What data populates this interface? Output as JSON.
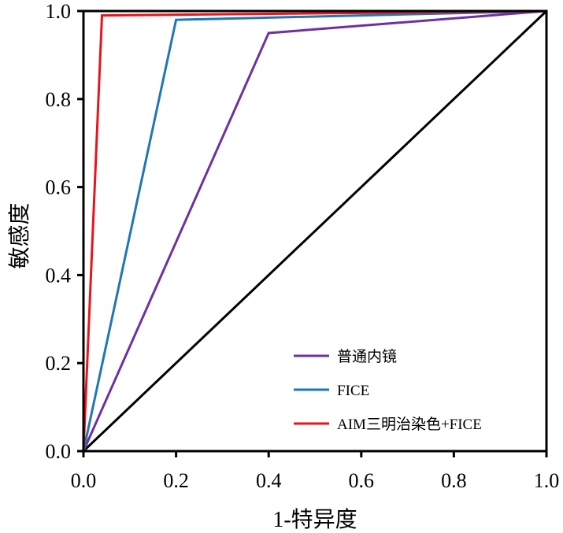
{
  "chart_data": {
    "type": "line",
    "xlabel": "1-特异度",
    "ylabel": "敏感度",
    "xlim": [
      0,
      1
    ],
    "ylim": [
      0,
      1
    ],
    "xticks": [
      "0.0",
      "0.2",
      "0.4",
      "0.6",
      "0.8",
      "1.0"
    ],
    "yticks": [
      "0.0",
      "0.2",
      "0.4",
      "0.6",
      "0.8",
      "1.0"
    ],
    "grid": false,
    "legend_position": "bottom-right",
    "reference_line": {
      "x": [
        0,
        1
      ],
      "y": [
        0,
        1
      ],
      "color": "#000000"
    },
    "series": [
      {
        "name": "普通内镜",
        "color": "#7030a0",
        "x": [
          0,
          0.4,
          1.0
        ],
        "y": [
          0,
          0.95,
          1.0
        ]
      },
      {
        "name": "FICE",
        "color": "#1f77b4",
        "x": [
          0,
          0.2,
          1.0
        ],
        "y": [
          0,
          0.98,
          1.0
        ]
      },
      {
        "name": "AIM三明治染色+FICE",
        "color": "#e8141b",
        "x": [
          0,
          0.04,
          1.0
        ],
        "y": [
          0,
          0.99,
          1.0
        ]
      }
    ]
  }
}
